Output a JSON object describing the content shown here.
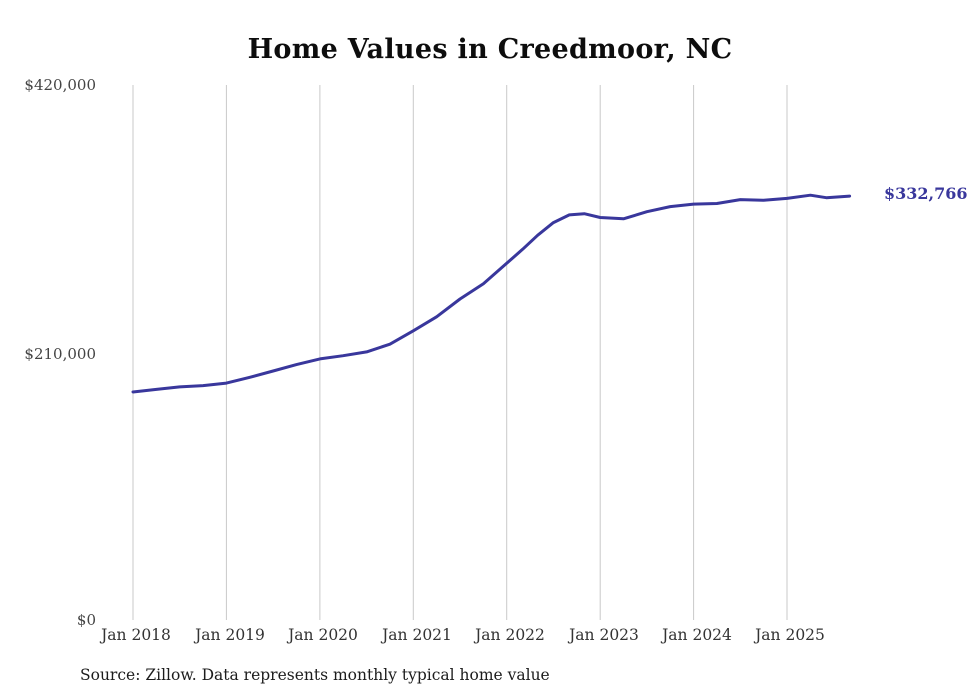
{
  "title": "Home Values in Creedmoor, NC",
  "source": "Source: Zillow. Data represents monthly typical home value",
  "colors": {
    "line": "#39379c",
    "grid": "#c9c9c9",
    "value_label": "#39379c"
  },
  "chart_data": {
    "type": "line",
    "title": "Home Values in Creedmoor, NC",
    "xlabel": "",
    "ylabel": "",
    "ylim": [
      0,
      420000
    ],
    "grid": "vertical",
    "legend_position": "none",
    "y_ticks": [
      {
        "value": 420000,
        "label": "$420,000"
      },
      {
        "value": 210000,
        "label": "$210,000"
      },
      {
        "value": 0,
        "label": "$0"
      }
    ],
    "x_ticks": [
      {
        "year": 2018,
        "label": "Jan 2018"
      },
      {
        "year": 2019,
        "label": "Jan 2019"
      },
      {
        "year": 2020,
        "label": "Jan 2020"
      },
      {
        "year": 2021,
        "label": "Jan 2021"
      },
      {
        "year": 2022,
        "label": "Jan 2022"
      },
      {
        "year": 2023,
        "label": "Jan 2023"
      },
      {
        "year": 2024,
        "label": "Jan 2024"
      },
      {
        "year": 2025,
        "label": "Jan 2025"
      }
    ],
    "series": [
      {
        "name": "Monthly typical home value",
        "x": [
          2018.0,
          2018.25,
          2018.5,
          2018.75,
          2019.0,
          2019.25,
          2019.5,
          2019.75,
          2020.0,
          2020.25,
          2020.5,
          2020.75,
          2021.0,
          2021.25,
          2021.5,
          2021.75,
          2022.0,
          2022.17,
          2022.33,
          2022.5,
          2022.67,
          2022.83,
          2023.0,
          2023.25,
          2023.5,
          2023.75,
          2024.0,
          2024.25,
          2024.5,
          2024.75,
          2025.0,
          2025.25,
          2025.42,
          2025.67
        ],
        "values": [
          179000,
          181000,
          183000,
          184000,
          186000,
          190500,
          195500,
          200500,
          205000,
          207500,
          210500,
          216500,
          227000,
          238000,
          252000,
          264000,
          280000,
          291000,
          302000,
          312000,
          318000,
          319000,
          316000,
          315000,
          320500,
          324500,
          326500,
          327000,
          330000,
          329500,
          331000,
          333500,
          331500,
          332766
        ]
      }
    ],
    "final_value": 332766,
    "final_value_label": "$332,766"
  }
}
